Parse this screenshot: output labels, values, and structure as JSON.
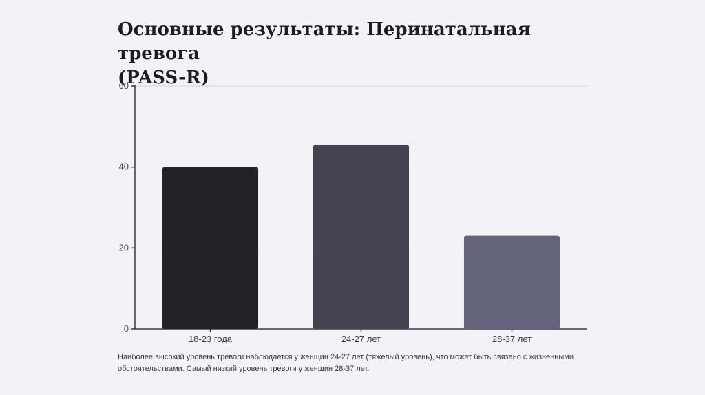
{
  "slide": {
    "title_line1": "Основные результаты: Перинатальная тревога",
    "title_line2": "(PASS-R)",
    "caption": "Наиболее высокий уровень тревоги наблюдается у женщин 24-27 лет (тяжелый уровень), что может быть связано с жизненными обстоятельствами. Самый низкий уровень тревоги у женщин 28-37 лет."
  },
  "chart_data": {
    "type": "bar",
    "categories": [
      "18-23 года",
      "24-27 лет",
      "28-37 лет"
    ],
    "values": [
      40,
      45.5,
      23
    ],
    "colors": [
      "#222228",
      "#44434f",
      "#63637b"
    ],
    "ylim": [
      0,
      60
    ],
    "yticks": [
      0,
      20,
      40,
      60
    ],
    "grid": true
  }
}
